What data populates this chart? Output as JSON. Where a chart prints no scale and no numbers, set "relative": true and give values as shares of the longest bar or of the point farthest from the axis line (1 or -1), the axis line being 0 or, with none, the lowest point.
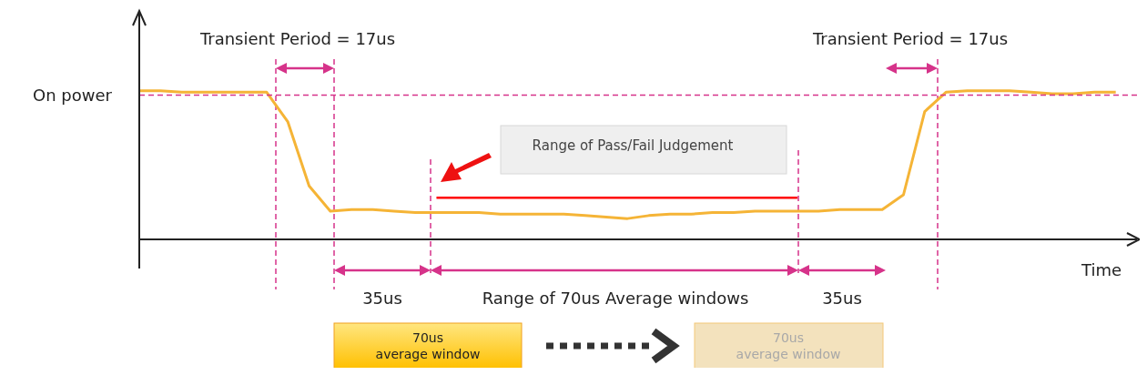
{
  "chart_data": {
    "type": "line",
    "relative": true,
    "xlabel": "Time",
    "marker": "none",
    "line_style": "solid",
    "categories": [
      null,
      null,
      null,
      null,
      null,
      null,
      null,
      null,
      null,
      null,
      null,
      null,
      null,
      null,
      null,
      null,
      null,
      null,
      null,
      null,
      null,
      null,
      null,
      null,
      null,
      null,
      null,
      null,
      null,
      null,
      null,
      null,
      null,
      null,
      null,
      null,
      null,
      null,
      null,
      null,
      null,
      null,
      null,
      null,
      null,
      null,
      null,
      null
    ],
    "series": [
      {
        "color": "#f5b436",
        "values": [
          1.0,
          1.0,
          0.99,
          0.99,
          0.99,
          0.99,
          0.99,
          0.79,
          0.36,
          0.19,
          0.2,
          0.2,
          0.19,
          0.18,
          0.18,
          0.18,
          0.18,
          0.17,
          0.17,
          0.17,
          0.17,
          0.16,
          0.15,
          0.14,
          0.16,
          0.17,
          0.17,
          0.18,
          0.18,
          0.19,
          0.19,
          0.19,
          0.19,
          0.2,
          0.2,
          0.2,
          0.3,
          0.86,
          0.99,
          1.0,
          1.0,
          1.0,
          0.99,
          0.98,
          0.98,
          0.99,
          0.99,
          null
        ]
      },
      {
        "type": "line",
        "color": "#ff0000",
        "values": [
          null,
          null,
          null,
          null,
          null,
          null,
          null,
          null,
          null,
          null,
          null,
          null,
          null,
          null,
          0.28,
          0.28,
          0.28,
          0.28,
          0.28,
          0.28,
          0.28,
          0.28,
          0.28,
          0.28,
          0.28,
          0.28,
          0.28,
          0.28,
          0.28,
          0.28,
          0.28,
          0.28,
          null,
          null,
          null,
          null,
          null,
          null,
          null,
          null,
          null,
          null,
          null,
          null,
          null,
          null,
          null,
          null
        ]
      }
    ],
    "ref_lines": [
      {
        "axis": "y",
        "value": 0.97,
        "label": "On power",
        "color": "#d6338a",
        "line_style": "dashed"
      }
    ],
    "annotations": [
      "Transient Period = 17us",
      "Transient Period = 17us",
      "Range of Pass/Fail Judgement",
      "35us",
      "Range of 70us Average windows",
      "35us",
      "70us\naverage window",
      "70us\naverage window"
    ]
  }
}
